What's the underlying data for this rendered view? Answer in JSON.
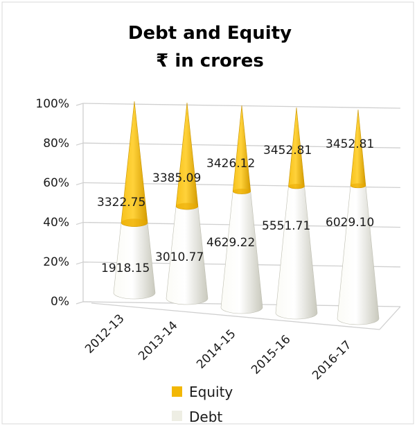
{
  "chart_data": {
    "type": "bar",
    "style": "3d-cone-stacked-100",
    "title": "Debt and Equity",
    "subtitle": "₹ in crores",
    "categories": [
      "2012-13",
      "2013-14",
      "2014-15",
      "2015-16",
      "2016-17"
    ],
    "series": [
      {
        "name": "Debt",
        "color": "#EEEEE4",
        "values": [
          1918.15,
          3010.77,
          4629.22,
          5551.71,
          6029.1
        ],
        "labels": [
          "1918.15",
          "3010.77",
          "4629.22",
          "5551.71",
          "6029.10"
        ]
      },
      {
        "name": "Equity",
        "color": "#F2B705",
        "values": [
          3322.75,
          3385.09,
          3426.12,
          3452.81,
          3452.81
        ],
        "labels": [
          "3322.75",
          "3385.09",
          "3426.12",
          "3452.81",
          "3452.81"
        ]
      }
    ],
    "yticks": [
      "0%",
      "20%",
      "40%",
      "60%",
      "80%",
      "100%"
    ],
    "ylim": [
      0,
      100
    ],
    "grid": true,
    "legend": {
      "placement": "bottom",
      "order": [
        "Equity",
        "Debt"
      ]
    }
  }
}
